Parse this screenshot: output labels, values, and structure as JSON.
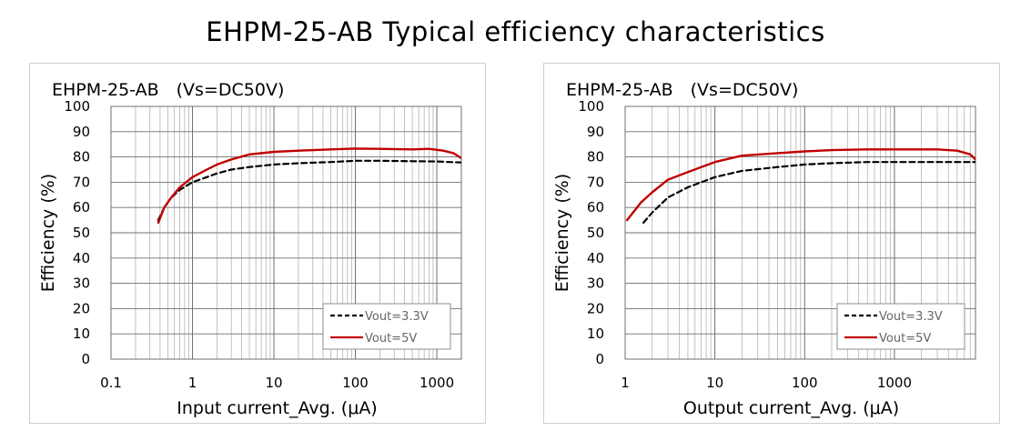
{
  "page": {
    "title": "EHPM-25-AB Typical efficiency characteristics"
  },
  "chart_data": [
    {
      "type": "line",
      "title": "EHPM-25-AB　(Vs=DC50V)",
      "xlabel": "Input current_Avg. (μA)",
      "ylabel": "Efficiency (%)",
      "xscale": "log",
      "xlim": [
        0.1,
        2000
      ],
      "ylim": [
        0,
        100
      ],
      "xticks": [
        0.1,
        1,
        10,
        100,
        1000
      ],
      "xtick_labels": [
        "0.1",
        "1",
        "10",
        "100",
        "1000"
      ],
      "yticks": [
        0,
        10,
        20,
        30,
        40,
        50,
        60,
        70,
        80,
        90,
        100
      ],
      "ytick_labels": [
        "0",
        "10",
        "20",
        "30",
        "40",
        "50",
        "60",
        "70",
        "80",
        "90",
        "100"
      ],
      "grid": true,
      "legend_position": "bottom-right",
      "series": [
        {
          "name": "Vout=3.3V",
          "color": "#000000",
          "dash": "dashed",
          "x": [
            0.38,
            0.45,
            0.55,
            0.7,
            1,
            1.5,
            2,
            3,
            5,
            10,
            20,
            50,
            100,
            200,
            500,
            1000,
            2000
          ],
          "y": [
            55,
            60,
            64,
            67,
            70,
            72,
            73.5,
            75,
            76,
            77,
            77.5,
            78,
            78.5,
            78.5,
            78.3,
            78.2,
            77.8
          ]
        },
        {
          "name": "Vout=5V",
          "color": "#c00000",
          "dash": "solid",
          "x": [
            0.38,
            0.45,
            0.55,
            0.7,
            1,
            1.5,
            2,
            3,
            5,
            10,
            20,
            50,
            100,
            200,
            500,
            800,
            1200,
            1600,
            2000
          ],
          "y": [
            54,
            60,
            64,
            68,
            72,
            75,
            77,
            79,
            81,
            82,
            82.5,
            83,
            83.3,
            83.2,
            83,
            83.2,
            82.5,
            81.5,
            79.5
          ]
        }
      ]
    },
    {
      "type": "line",
      "title": "EHPM-25-AB　(Vs=DC50V)",
      "xlabel": "Output current_Avg. (μA)",
      "ylabel": "Efficiency (%)",
      "xscale": "log",
      "xlim": [
        1,
        8000
      ],
      "ylim": [
        0,
        100
      ],
      "xticks": [
        1,
        10,
        100,
        1000
      ],
      "xtick_labels": [
        "1",
        "10",
        "100",
        "1000"
      ],
      "yticks": [
        0,
        10,
        20,
        30,
        40,
        50,
        60,
        70,
        80,
        90,
        100
      ],
      "ytick_labels": [
        "0",
        "10",
        "20",
        "30",
        "40",
        "50",
        "60",
        "70",
        "80",
        "90",
        "100"
      ],
      "grid": true,
      "legend_position": "bottom-right",
      "series": [
        {
          "name": "Vout=3.3V",
          "color": "#000000",
          "dash": "dashed",
          "x": [
            1.6,
            2,
            3,
            5,
            10,
            20,
            50,
            100,
            200,
            500,
            1000,
            2000,
            5000,
            8000
          ],
          "y": [
            54,
            58,
            64,
            68,
            72,
            74.5,
            76,
            77,
            77.5,
            78,
            78,
            78,
            78,
            78
          ]
        },
        {
          "name": "Vout=5V",
          "color": "#c00000",
          "dash": "solid",
          "x": [
            1.05,
            1.5,
            2,
            3,
            5,
            10,
            20,
            50,
            100,
            200,
            500,
            1000,
            2000,
            3000,
            5000,
            7000,
            8000
          ],
          "y": [
            55,
            62,
            66,
            71,
            74,
            78,
            80.5,
            81.5,
            82.2,
            82.7,
            83,
            83,
            83,
            83,
            82.5,
            81,
            79
          ]
        }
      ]
    }
  ]
}
